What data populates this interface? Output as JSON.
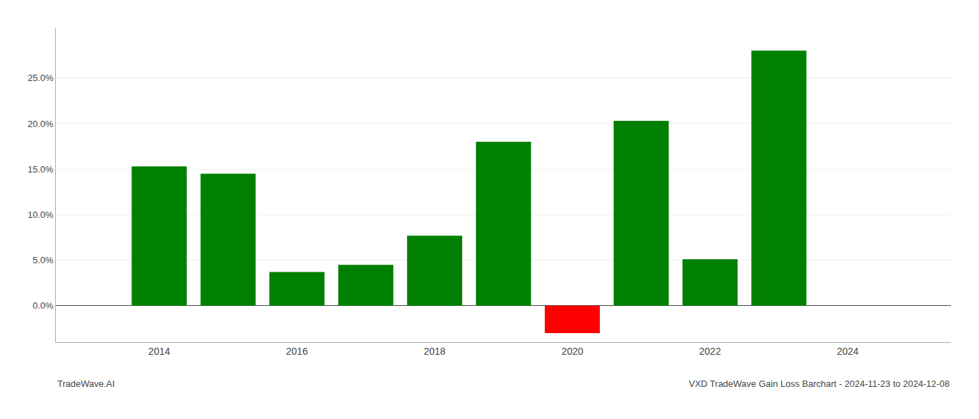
{
  "chart_data": {
    "type": "bar",
    "title": "VXD TradeWave Gain Loss Barchart - 2024-11-23 to 2024-12-08",
    "annotations": [
      "TradeWave.AI"
    ],
    "x": [
      2014,
      2015,
      2016,
      2017,
      2018,
      2019,
      2020,
      2021,
      2022,
      2023
    ],
    "values": [
      0.153,
      0.145,
      0.037,
      0.045,
      0.077,
      0.18,
      -0.03,
      0.203,
      0.051,
      0.28
    ],
    "colors": [
      "#008000",
      "#008000",
      "#008000",
      "#008000",
      "#008000",
      "#008000",
      "#ff0000",
      "#008000",
      "#008000",
      "#008000"
    ],
    "xlim": [
      2012.5,
      2025.5
    ],
    "xticks": [
      2014,
      2016,
      2018,
      2020,
      2022,
      2024
    ],
    "ylim": [
      -0.04,
      0.305
    ],
    "yticks": [
      {
        "value": 0.0,
        "label": "0.0%"
      },
      {
        "value": 0.05,
        "label": "5.0%"
      },
      {
        "value": 0.1,
        "label": "10.0%"
      },
      {
        "value": 0.15,
        "label": "15.0%"
      },
      {
        "value": 0.2,
        "label": "20.0%"
      },
      {
        "value": 0.25,
        "label": "25.0%"
      }
    ],
    "grid": true
  }
}
